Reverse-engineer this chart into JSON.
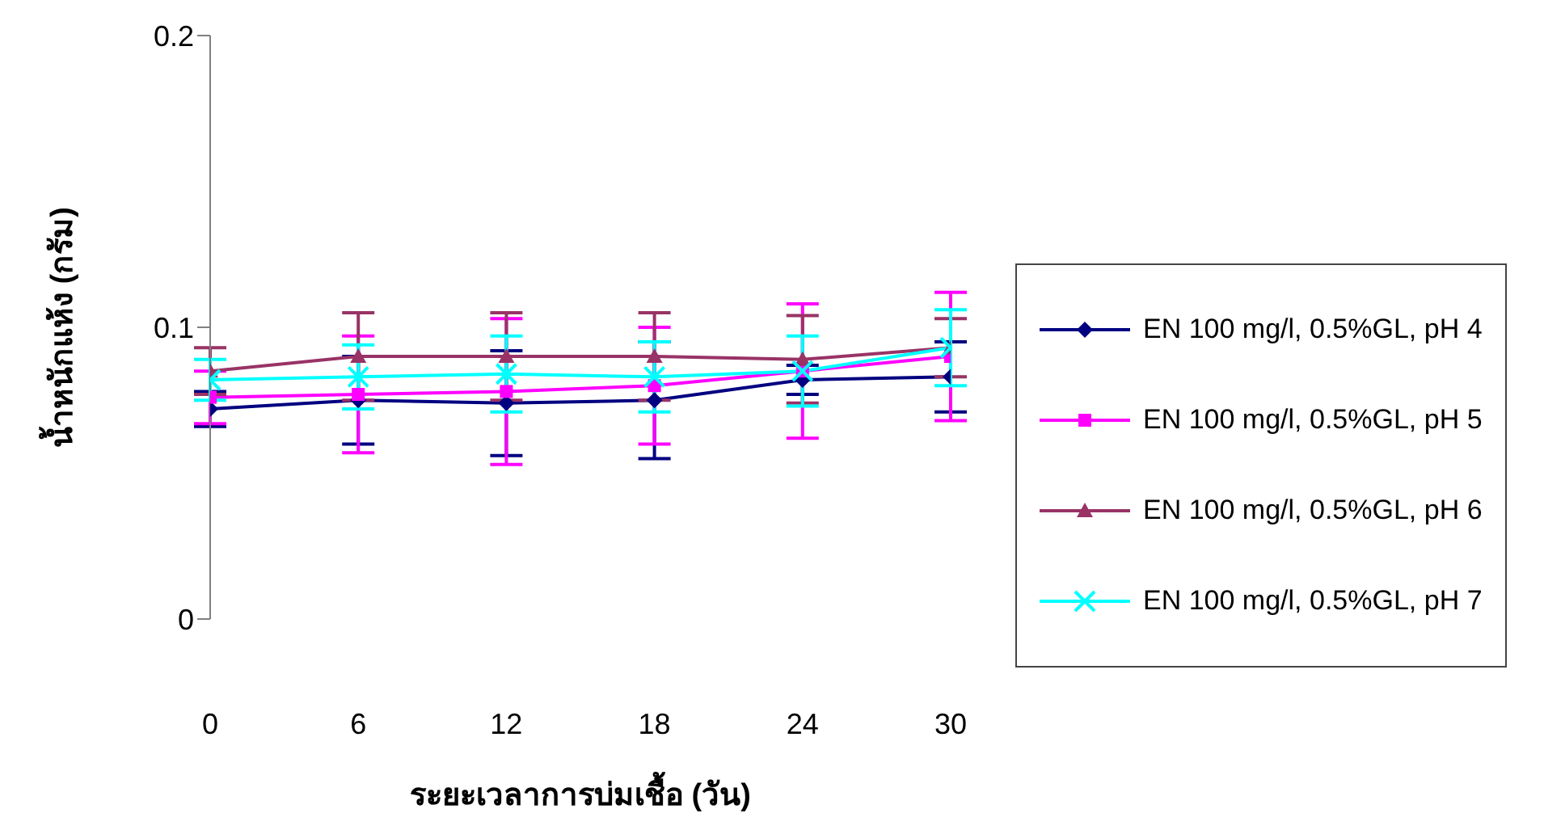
{
  "chart_data": {
    "type": "line",
    "xlabel": "ระยะเวลาการบ่มเชื้อ (วัน)",
    "ylabel": "น้ำหนักแห้ง (กรัม)",
    "x": [
      0,
      6,
      12,
      18,
      24,
      30
    ],
    "xlim": [
      0,
      30
    ],
    "xticks": [
      0,
      6,
      12,
      18,
      24,
      30
    ],
    "ylim": [
      0,
      0.2
    ],
    "yticks": [
      0,
      0.1,
      0.2
    ],
    "legend": "right",
    "series": [
      {
        "name": "EN 100 mg/l, 0.5%GL, pH 4",
        "color": "#000080",
        "marker": "diamond",
        "values": [
          0.072,
          0.075,
          0.074,
          0.075,
          0.082,
          0.083
        ],
        "errors": [
          0.006,
          0.015,
          0.018,
          0.02,
          0.005,
          0.012
        ]
      },
      {
        "name": "EN 100 mg/l, 0.5%GL, pH 5",
        "color": "#ff00ff",
        "marker": "square",
        "values": [
          0.076,
          0.077,
          0.078,
          0.08,
          0.085,
          0.09
        ],
        "errors": [
          0.009,
          0.02,
          0.025,
          0.02,
          0.023,
          0.022
        ]
      },
      {
        "name": "EN 100 mg/l, 0.5%GL, pH 6",
        "color": "#993366",
        "marker": "triangle",
        "values": [
          0.085,
          0.09,
          0.09,
          0.09,
          0.089,
          0.093
        ],
        "errors": [
          0.008,
          0.015,
          0.015,
          0.015,
          0.015,
          0.01
        ]
      },
      {
        "name": "EN 100 mg/l, 0.5%GL, pH 7",
        "color": "#00ffff",
        "marker": "cross",
        "values": [
          0.082,
          0.083,
          0.084,
          0.083,
          0.085,
          0.093
        ],
        "errors": [
          0.007,
          0.011,
          0.013,
          0.012,
          0.012,
          0.013
        ]
      }
    ]
  }
}
